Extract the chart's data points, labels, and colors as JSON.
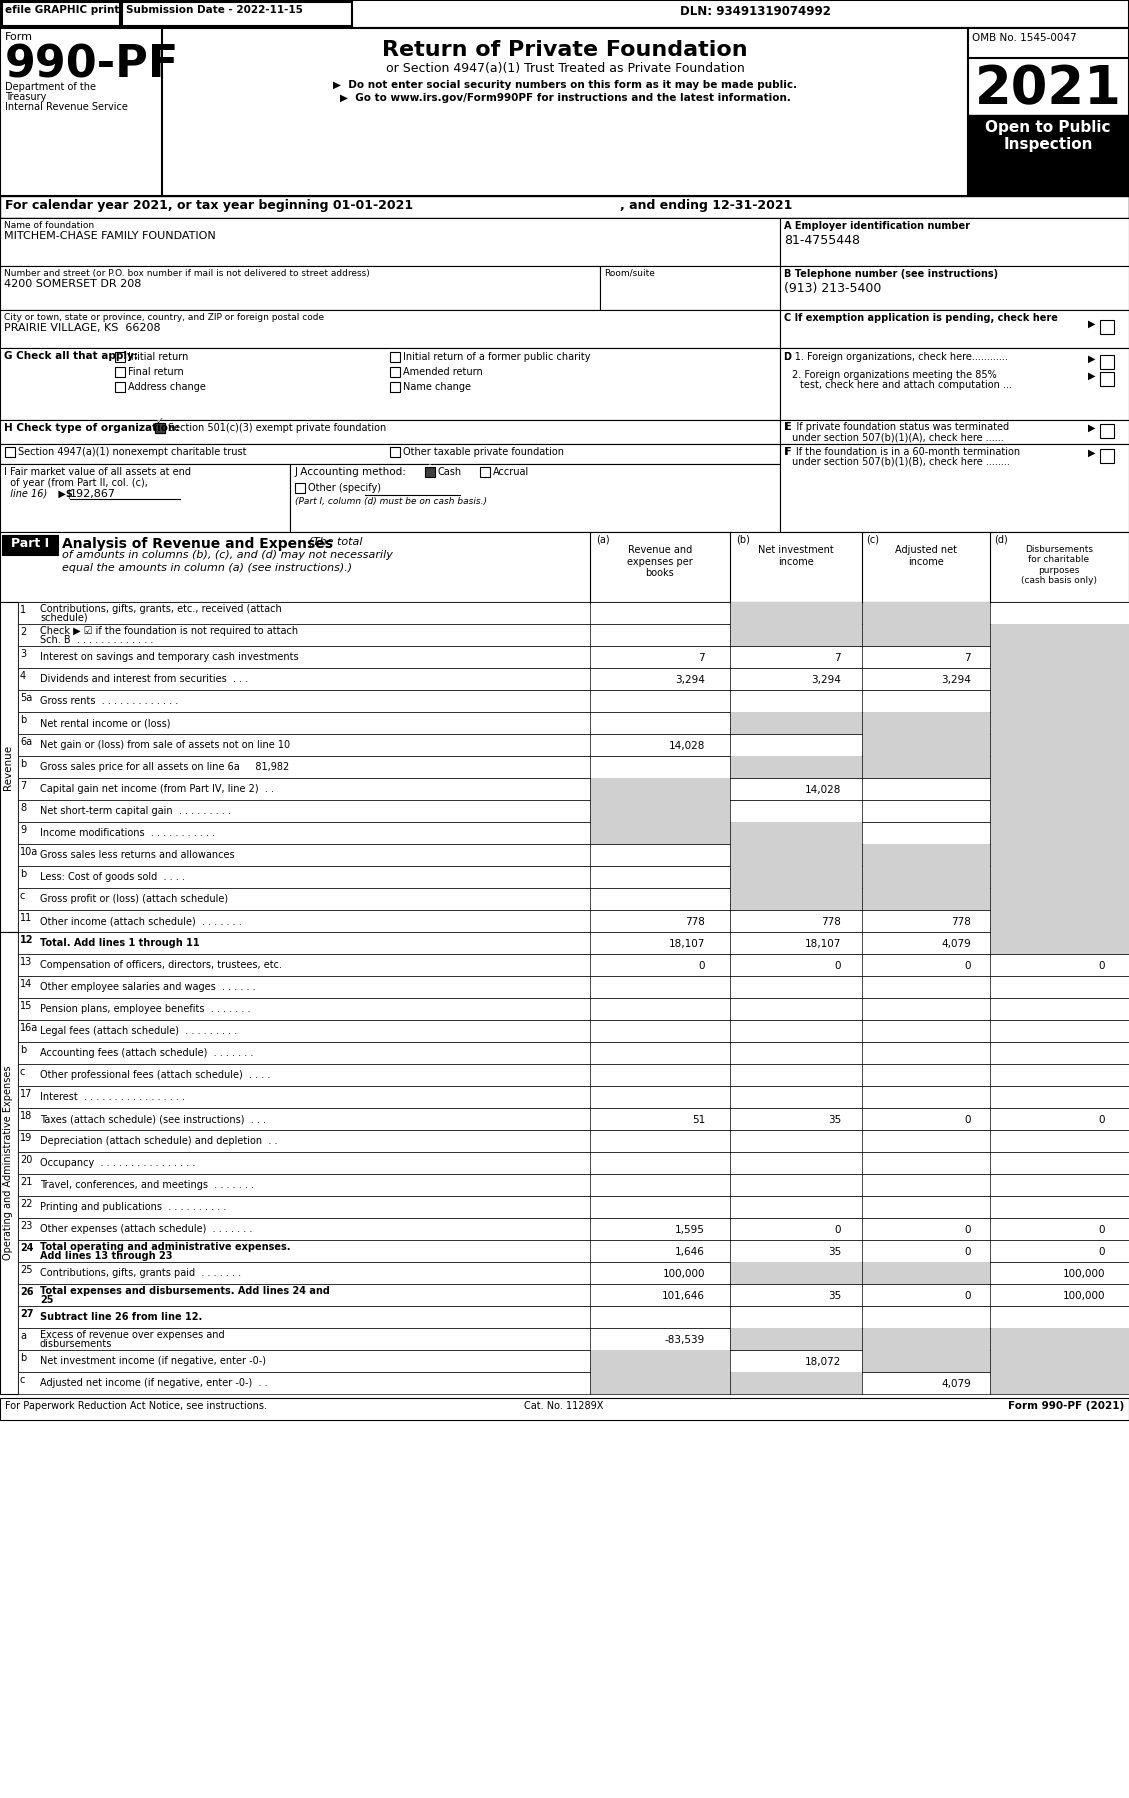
{
  "efile_text": "efile GRAPHIC print",
  "submission_date": "Submission Date - 2022-11-15",
  "dln": "DLN: 93491319074992",
  "form_number": "990-PF",
  "form_label": "Form",
  "title": "Return of Private Foundation",
  "subtitle": "or Section 4947(a)(1) Trust Treated as Private Foundation",
  "bullet1": "▶  Do not enter social security numbers on this form as it may be made public.",
  "bullet2": "▶  Go to www.irs.gov/Form990PF for instructions and the latest information.",
  "year": "2021",
  "open_to_public": "Open to Public\nInspection",
  "omb": "OMB No. 1545-0047",
  "dept1": "Department of the",
  "dept2": "Treasury",
  "dept3": "Internal Revenue Service",
  "cal_year": "For calendar year 2021, or tax year beginning 01-01-2021",
  "ending": ", and ending 12-31-2021",
  "name_label": "Name of foundation",
  "name_value": "MITCHEM-CHASE FAMILY FOUNDATION",
  "ein_label": "A Employer identification number",
  "ein_value": "81-4755448",
  "address_label": "Number and street (or P.O. box number if mail is not delivered to street address)",
  "address_value": "4200 SOMERSET DR 208",
  "room_label": "Room/suite",
  "phone_label": "B Telephone number (see instructions)",
  "phone_value": "(913) 213-5400",
  "city_label": "City or town, state or province, country, and ZIP or foreign postal code",
  "city_value": "PRAIRIE VILLAGE, KS  66208",
  "exempt_label": "C If exemption application is pending, check here",
  "g_label": "G Check all that apply:",
  "initial_return": "Initial return",
  "initial_former": "Initial return of a former public charity",
  "final_return": "Final return",
  "amended_return": "Amended return",
  "address_change": "Address change",
  "name_change": "Name change",
  "d1_label": "D 1. Foreign organizations, check here............",
  "d2_label": "2. Foreign organizations meeting the 85%\n    test, check here and attach computation ...",
  "e_label": "E  If private foundation status was terminated\n    under section 507(b)(1)(A), check here ......",
  "h_label": "H Check type of organization:",
  "h_501c3": "Section 501(c)(3) exempt private foundation",
  "h_4947": "Section 4947(a)(1) nonexempt charitable trust",
  "h_other": "Other taxable private foundation",
  "i_label": "I Fair market value of all assets at end\n  of year (from Part II, col. (c),\n  line 16)",
  "i_value": "192,867",
  "j_label": "J Accounting method:",
  "j_cash": "Cash",
  "j_accrual": "Accrual",
  "j_other": "Other (specify)",
  "j_note": "(Part I, column (d) must be on cash basis.)",
  "f_label": "F  If the foundation is in a 60-month termination\n    under section 507(b)(1)(B), check here ........",
  "part1_label": "Part I",
  "part1_title": "Analysis of Revenue and Expenses",
  "part1_subtitle": "(The total\nof amounts in columns (b), (c), and (d) may not necessarily\nequal the amounts in column (a) (see instructions).)",
  "col_a": "Revenue and\nexpenses per\nbooks",
  "col_b": "Net investment\nincome",
  "col_c": "Adjusted net\nincome",
  "col_d": "Disbursements\nfor charitable\npurposes\n(cash basis only)",
  "col_a_label": "(a)",
  "col_b_label": "(b)",
  "col_c_label": "(c)",
  "col_d_label": "(d)",
  "revenue_label": "Revenue",
  "expenses_label": "Operating and Administrative Expenses",
  "rows": [
    {
      "num": "1",
      "desc": "Contributions, gifts, grants, etc., received (attach\nschedule)",
      "a": "",
      "b": "",
      "c": "",
      "d": "",
      "shaded_b": true,
      "shaded_c": true,
      "shaded_d": false
    },
    {
      "num": "2",
      "desc": "Check ▶ ☑ if the foundation is not required to attach\nSch. B  . . . . . . . . . . . . .",
      "a": "",
      "b": "",
      "c": "",
      "d": "",
      "shaded_b": true,
      "shaded_c": true,
      "shaded_d": true
    },
    {
      "num": "3",
      "desc": "Interest on savings and temporary cash investments",
      "a": "7",
      "b": "7",
      "c": "7",
      "d": "",
      "shaded_d": true
    },
    {
      "num": "4",
      "desc": "Dividends and interest from securities  . . .",
      "a": "3,294",
      "b": "3,294",
      "c": "3,294",
      "d": "",
      "shaded_d": true
    },
    {
      "num": "5a",
      "desc": "Gross rents  . . . . . . . . . . . . .",
      "a": "",
      "b": "",
      "c": "",
      "d": "",
      "shaded_d": true
    },
    {
      "num": "b",
      "desc": "Net rental income or (loss)",
      "a": "",
      "b": "",
      "c": "",
      "d": "",
      "shaded_b": true,
      "shaded_c": true,
      "shaded_d": true
    },
    {
      "num": "6a",
      "desc": "Net gain or (loss) from sale of assets not on line 10",
      "a": "14,028",
      "b": "",
      "c": "",
      "d": "",
      "shaded_b": false,
      "shaded_c": true,
      "shaded_d": true
    },
    {
      "num": "b",
      "desc": "Gross sales price for all assets on line 6a     81,982",
      "a": "",
      "b": "",
      "c": "",
      "d": "",
      "shaded_b": true,
      "shaded_c": true,
      "shaded_d": true
    },
    {
      "num": "7",
      "desc": "Capital gain net income (from Part IV, line 2)  . .",
      "a": "",
      "b": "14,028",
      "c": "",
      "d": "",
      "shaded_a": true,
      "shaded_d": true
    },
    {
      "num": "8",
      "desc": "Net short-term capital gain  . . . . . . . . .",
      "a": "",
      "b": "",
      "c": "",
      "d": "",
      "shaded_a": true,
      "shaded_d": true
    },
    {
      "num": "9",
      "desc": "Income modifications  . . . . . . . . . . .",
      "a": "",
      "b": "",
      "c": "",
      "d": "",
      "shaded_a": true,
      "shaded_b": true,
      "shaded_d": true
    },
    {
      "num": "10a",
      "desc": "Gross sales less returns and allowances",
      "a": "",
      "b": "",
      "c": "",
      "d": "",
      "shaded_b": true,
      "shaded_c": true,
      "shaded_d": true
    },
    {
      "num": "b",
      "desc": "Less: Cost of goods sold  . . . .",
      "a": "",
      "b": "",
      "c": "",
      "d": "",
      "shaded_b": true,
      "shaded_c": true,
      "shaded_d": true
    },
    {
      "num": "c",
      "desc": "Gross profit or (loss) (attach schedule)",
      "a": "",
      "b": "",
      "c": "",
      "d": "",
      "shaded_b": true,
      "shaded_c": true,
      "shaded_d": true
    },
    {
      "num": "11",
      "desc": "Other income (attach schedule)  . . . . . . .",
      "a": "778",
      "b": "778",
      "c": "778",
      "d": "",
      "shaded_d": true
    },
    {
      "num": "12",
      "desc": "Total. Add lines 1 through 11",
      "a": "18,107",
      "b": "18,107",
      "c": "4,079",
      "d": "",
      "shaded_d": true,
      "bold": true
    },
    {
      "num": "13",
      "desc": "Compensation of officers, directors, trustees, etc.",
      "a": "0",
      "b": "0",
      "c": "0",
      "d": "0"
    },
    {
      "num": "14",
      "desc": "Other employee salaries and wages  . . . . . .",
      "a": "",
      "b": "",
      "c": "",
      "d": ""
    },
    {
      "num": "15",
      "desc": "Pension plans, employee benefits  . . . . . . .",
      "a": "",
      "b": "",
      "c": "",
      "d": ""
    },
    {
      "num": "16a",
      "desc": "Legal fees (attach schedule)  . . . . . . . . .",
      "a": "",
      "b": "",
      "c": "",
      "d": ""
    },
    {
      "num": "b",
      "desc": "Accounting fees (attach schedule)  . . . . . . .",
      "a": "",
      "b": "",
      "c": "",
      "d": ""
    },
    {
      "num": "c",
      "desc": "Other professional fees (attach schedule)  . . . .",
      "a": "",
      "b": "",
      "c": "",
      "d": ""
    },
    {
      "num": "17",
      "desc": "Interest  . . . . . . . . . . . . . . . . .",
      "a": "",
      "b": "",
      "c": "",
      "d": ""
    },
    {
      "num": "18",
      "desc": "Taxes (attach schedule) (see instructions)  . . .",
      "a": "51",
      "b": "35",
      "c": "0",
      "d": "0"
    },
    {
      "num": "19",
      "desc": "Depreciation (attach schedule) and depletion  . .",
      "a": "",
      "b": "",
      "c": "",
      "d": ""
    },
    {
      "num": "20",
      "desc": "Occupancy  . . . . . . . . . . . . . . . .",
      "a": "",
      "b": "",
      "c": "",
      "d": ""
    },
    {
      "num": "21",
      "desc": "Travel, conferences, and meetings  . . . . . . .",
      "a": "",
      "b": "",
      "c": "",
      "d": ""
    },
    {
      "num": "22",
      "desc": "Printing and publications  . . . . . . . . . .",
      "a": "",
      "b": "",
      "c": "",
      "d": ""
    },
    {
      "num": "23",
      "desc": "Other expenses (attach schedule)  . . . . . . .",
      "a": "1,595",
      "b": "0",
      "c": "0",
      "d": "0"
    },
    {
      "num": "24",
      "desc": "Total operating and administrative expenses.\nAdd lines 13 through 23",
      "a": "1,646",
      "b": "35",
      "c": "0",
      "d": "0",
      "bold": true
    },
    {
      "num": "25",
      "desc": "Contributions, gifts, grants paid  . . . . . . .",
      "a": "100,000",
      "b": "",
      "c": "",
      "d": "100,000",
      "shaded_b": true,
      "shaded_c": true
    },
    {
      "num": "26",
      "desc": "Total expenses and disbursements. Add lines 24 and\n25",
      "a": "101,646",
      "b": "35",
      "c": "0",
      "d": "100,000",
      "bold": true
    },
    {
      "num": "27",
      "desc": "Subtract line 26 from line 12.",
      "a": "",
      "b": "",
      "c": "",
      "d": "",
      "bold": true,
      "header": true
    },
    {
      "num": "a",
      "desc": "Excess of revenue over expenses and\ndisbursements",
      "a": "-83,539",
      "b": "",
      "c": "",
      "d": "",
      "shaded_b": true,
      "shaded_c": true,
      "shaded_d": true
    },
    {
      "num": "b",
      "desc": "Net investment income (if negative, enter -0-)",
      "a": "",
      "b": "18,072",
      "c": "",
      "d": "",
      "shaded_a": true,
      "shaded_c": true,
      "shaded_d": true
    },
    {
      "num": "c",
      "desc": "Adjusted net income (if negative, enter -0-)  . .",
      "a": "",
      "b": "",
      "c": "4,079",
      "d": "",
      "shaded_a": true,
      "shaded_b": true,
      "shaded_d": true
    }
  ],
  "footer_left": "For Paperwork Reduction Act Notice, see instructions.",
  "footer_cat": "Cat. No. 11289X",
  "footer_right": "Form 990-PF (2021)",
  "bg_color": "#ffffff",
  "header_bg": "#000000",
  "shaded_color": "#d0d0d0",
  "part1_header_bg": "#000000",
  "part1_header_fg": "#ffffff",
  "light_gray": "#e8e8e8"
}
